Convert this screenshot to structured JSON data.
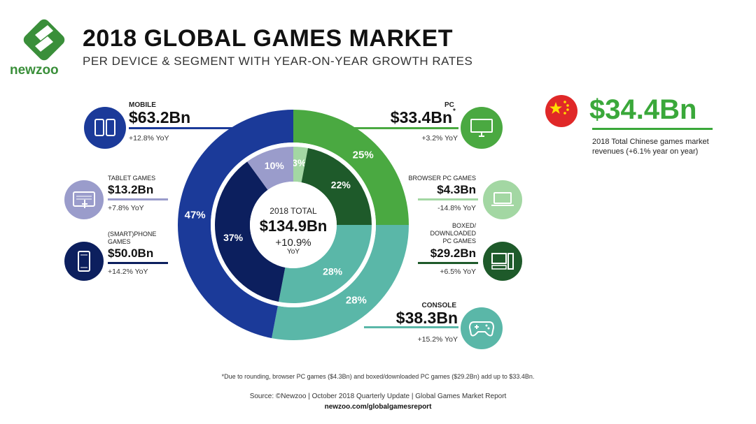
{
  "header": {
    "title": "2018 GLOBAL GAMES MARKET",
    "subtitle": "PER DEVICE & SEGMENT WITH YEAR-ON-YEAR GROWTH RATES",
    "brand": "newzoo"
  },
  "center": {
    "label": "2018 TOTAL",
    "value": "$134.9Bn",
    "growth": "+10.9%",
    "growth_suffix": "YoY"
  },
  "callouts": {
    "mobile": {
      "label": "MOBILE",
      "value": "$63.2Bn",
      "growth": "+12.8% YoY"
    },
    "tablet": {
      "label": "TABLET GAMES",
      "value": "$13.2Bn",
      "growth": "+7.8% YoY"
    },
    "phone": {
      "label_line1": "(SMART)PHONE",
      "label_line2": "GAMES",
      "value": "$50.0Bn",
      "growth": "+14.2% YoY"
    },
    "pc": {
      "label": "PC",
      "value": "$33.4Bn",
      "asterisk": "*",
      "growth": "+3.2% YoY"
    },
    "browser": {
      "label": "BROWSER PC GAMES",
      "value": "$4.3Bn",
      "growth": "-14.8% YoY"
    },
    "boxed": {
      "label_line1": "BOXED/",
      "label_line2": "DOWNLOADED",
      "label_line3": "PC GAMES",
      "value": "$29.2Bn",
      "growth": "+6.5% YoY"
    },
    "console": {
      "label": "CONSOLE",
      "value": "$38.3Bn",
      "growth": "+15.2% YoY"
    }
  },
  "china": {
    "value": "$34.4Bn",
    "description": "2018 Total Chinese games market revenues (+6.1% year on year)"
  },
  "footer": {
    "footnote": "*Due to rounding, browser PC games ($4.3Bn) and boxed/downloaded PC games ($29.2Bn) add up to $33.4Bn.",
    "source": "Source: ©Newzoo | October 2018 Quarterly Update | Global Games Market Report",
    "url": "newzoo.com/globalgamesreport"
  },
  "colors": {
    "mobile": "#1b3a99",
    "pc": "#4aa941",
    "console": "#5ab7a8",
    "phone": "#0c1f5e",
    "tablet": "#9a9ccb",
    "browser": "#a3d7a3",
    "boxed": "#1e5a2a"
  },
  "chart_data": [
    {
      "type": "pie",
      "title": "",
      "categories": [
        "PC",
        "Console",
        "Mobile"
      ],
      "values": [
        25,
        28,
        47
      ],
      "labels": [
        "25%",
        "28%",
        "47%"
      ],
      "colors": [
        "#4aa941",
        "#5ab7a8",
        "#1b3a99"
      ]
    },
    {
      "type": "pie",
      "title": "",
      "categories": [
        "Browser PC Games",
        "Boxed/Downloaded PC Games",
        "Console",
        "(Smart)Phone Games",
        "Tablet Games"
      ],
      "values": [
        3,
        22,
        28,
        37,
        10
      ],
      "labels": [
        "3%",
        "22%",
        "28%",
        "37%",
        "10%"
      ],
      "colors": [
        "#a3d7a3",
        "#1e5a2a",
        "#5ab7a8",
        "#0c1f5e",
        "#9a9ccb"
      ]
    }
  ]
}
